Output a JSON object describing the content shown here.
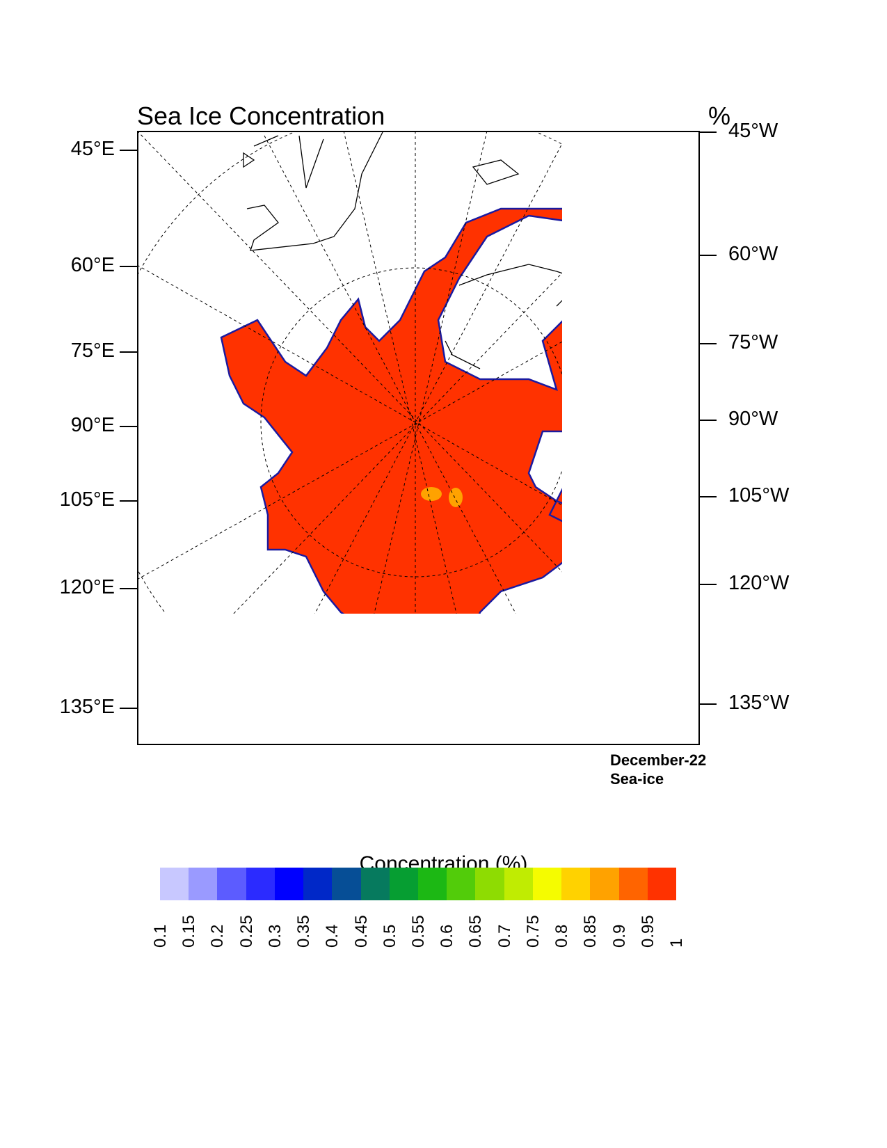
{
  "title": "Sea Ice Concentration",
  "units": "%",
  "left_labels": [
    "45°E",
    "60°E",
    "75°E",
    "90°E",
    "105°E",
    "120°E",
    "135°E"
  ],
  "right_labels": [
    "45°W",
    "60°W",
    "75°W",
    "90°W",
    "105°W",
    "120°W",
    "135°W"
  ],
  "info": {
    "date": "December-22",
    "variable": "Sea-ice"
  },
  "colorbar": {
    "title": "Concentration (%)",
    "levels": [
      "0.1",
      "0.15",
      "0.2",
      "0.25",
      "0.3",
      "0.35",
      "0.4",
      "0.45",
      "0.5",
      "0.55",
      "0.6",
      "0.65",
      "0.7",
      "0.75",
      "0.8",
      "0.85",
      "0.9",
      "0.95",
      "1"
    ],
    "colors": [
      "#c8c8ff",
      "#9a9aff",
      "#5c5cff",
      "#2b2bff",
      "#0000ff",
      "#0028c8",
      "#064e96",
      "#067a5e",
      "#069e32",
      "#1cb814",
      "#52cc0a",
      "#8edc02",
      "#c0ec02",
      "#f5fc00",
      "#ffd200",
      "#ffa200",
      "#ff6400",
      "#ff3200"
    ]
  },
  "chart_data": {
    "type": "heatmap",
    "title": "Sea Ice Concentration",
    "projection": "north polar stereographic",
    "dominant_value": "0.95-1 across the central Arctic basin",
    "colorbar_range": [
      0.1,
      1
    ]
  }
}
